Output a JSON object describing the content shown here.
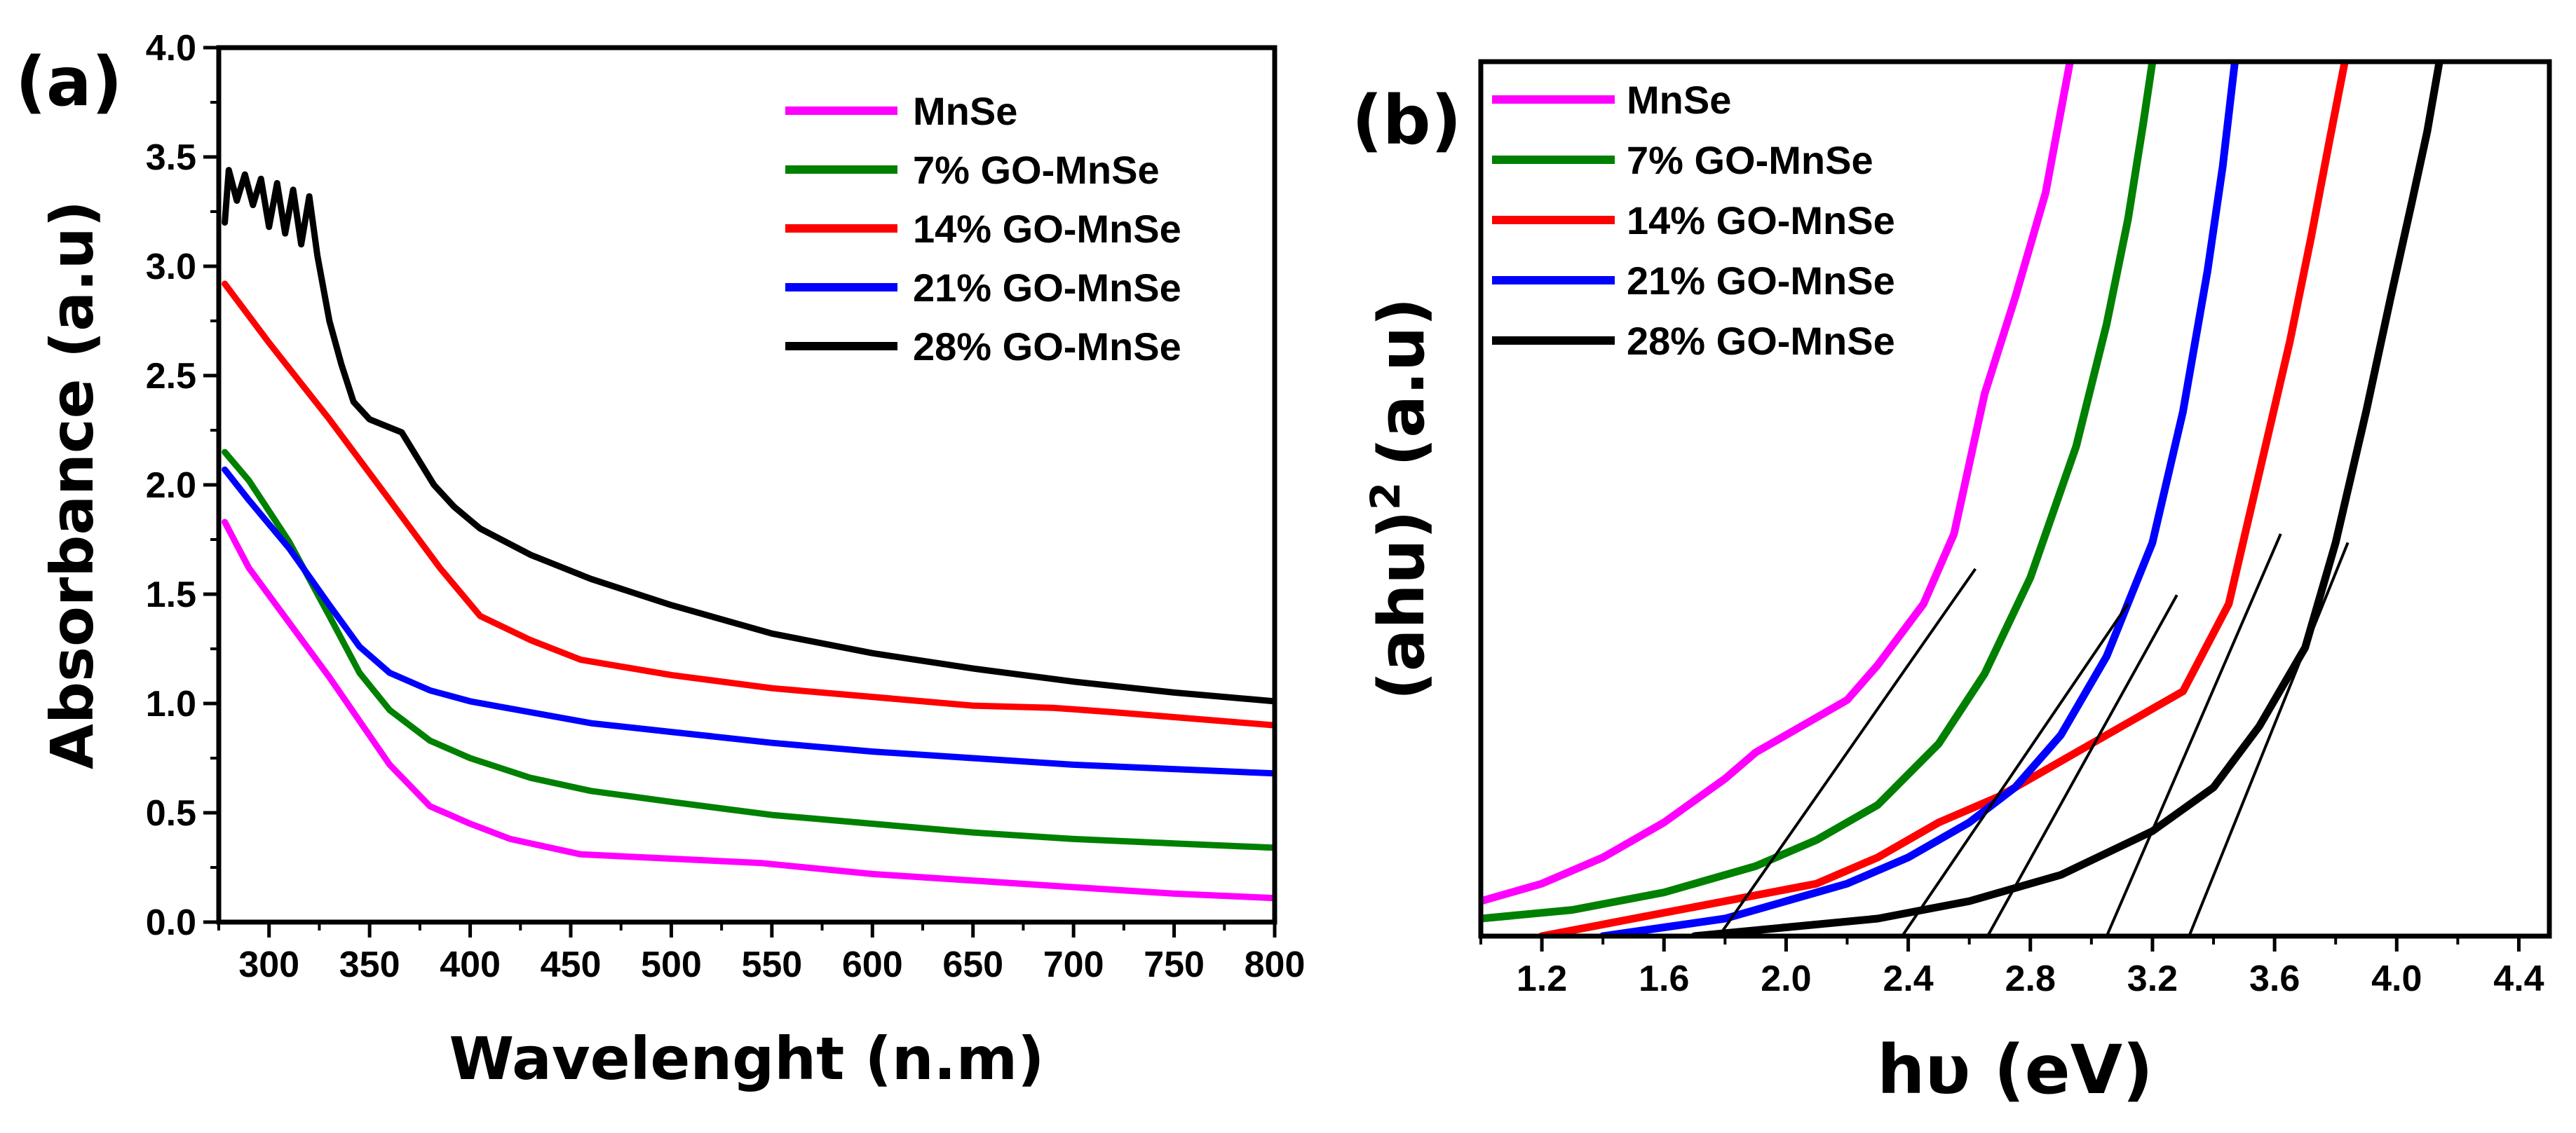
{
  "chart_data": [
    {
      "panel": "(a)",
      "type": "line",
      "xlabel": "Wavelenght (n.m)",
      "ylabel": "Absorbance (a.u)",
      "xlim": [
        275,
        800
      ],
      "ylim": [
        0,
        4.0
      ],
      "xticks": [
        300,
        350,
        400,
        450,
        500,
        550,
        600,
        650,
        700,
        750,
        800
      ],
      "yticks": [
        0.0,
        0.5,
        1.0,
        1.5,
        2.0,
        2.5,
        3.0,
        3.5,
        4.0
      ],
      "xtick_labels": [
        "300",
        "350",
        "400",
        "450",
        "500",
        "550",
        "600",
        "650",
        "700",
        "750",
        "800"
      ],
      "ytick_labels": [
        "0.0",
        "0.5",
        "1.0",
        "1.5",
        "2.0",
        "2.5",
        "3.0",
        "3.5",
        "4.0"
      ],
      "legend_position": "top-right",
      "series": [
        {
          "name": "MnSe",
          "color": "#ff00ff",
          "x": [
            278,
            290,
            310,
            330,
            345,
            360,
            380,
            400,
            420,
            455,
            500,
            545,
            600,
            650,
            700,
            750,
            800
          ],
          "y": [
            1.83,
            1.62,
            1.37,
            1.12,
            0.92,
            0.72,
            0.53,
            0.45,
            0.38,
            0.31,
            0.29,
            0.27,
            0.22,
            0.19,
            0.16,
            0.13,
            0.11
          ]
        },
        {
          "name": "7% GO-MnSe",
          "color": "#008000",
          "x": [
            278,
            290,
            310,
            330,
            345,
            360,
            380,
            400,
            430,
            460,
            500,
            550,
            600,
            650,
            700,
            750,
            800
          ],
          "y": [
            2.15,
            2.02,
            1.74,
            1.4,
            1.14,
            0.97,
            0.83,
            0.75,
            0.66,
            0.6,
            0.55,
            0.49,
            0.45,
            0.41,
            0.38,
            0.36,
            0.34
          ]
        },
        {
          "name": "14% GO-MnSe",
          "color": "#ff0000",
          "x": [
            278,
            300,
            330,
            360,
            385,
            405,
            430,
            455,
            500,
            550,
            600,
            650,
            690,
            720,
            760,
            800
          ],
          "y": [
            2.92,
            2.65,
            2.3,
            1.93,
            1.62,
            1.4,
            1.29,
            1.2,
            1.13,
            1.07,
            1.03,
            0.99,
            0.98,
            0.96,
            0.93,
            0.9
          ]
        },
        {
          "name": "21% GO-MnSe",
          "color": "#0000ff",
          "x": [
            278,
            290,
            310,
            330,
            345,
            360,
            380,
            400,
            430,
            460,
            500,
            550,
            600,
            650,
            700,
            750,
            800
          ],
          "y": [
            2.07,
            1.93,
            1.71,
            1.45,
            1.26,
            1.14,
            1.06,
            1.01,
            0.96,
            0.91,
            0.87,
            0.82,
            0.78,
            0.75,
            0.72,
            0.7,
            0.68
          ]
        },
        {
          "name": "28% GO-MnSe",
          "color": "#000000",
          "x": [
            278,
            280,
            284,
            288,
            292,
            296,
            300,
            304,
            308,
            312,
            316,
            320,
            324,
            330,
            336,
            342,
            350,
            358,
            366,
            374,
            382,
            392,
            405,
            430,
            460,
            500,
            550,
            600,
            650,
            700,
            750,
            800
          ],
          "y": [
            3.2,
            3.44,
            3.3,
            3.42,
            3.28,
            3.4,
            3.18,
            3.38,
            3.15,
            3.35,
            3.1,
            3.32,
            3.05,
            2.75,
            2.55,
            2.38,
            2.3,
            2.27,
            2.24,
            2.12,
            2.0,
            1.9,
            1.8,
            1.68,
            1.57,
            1.45,
            1.32,
            1.23,
            1.16,
            1.1,
            1.05,
            1.01
          ]
        }
      ]
    },
    {
      "panel": "(b)",
      "type": "line",
      "xlabel": "hυ (eV)",
      "ylabel_main": "(ahu)",
      "ylabel_sup": "2",
      "ylabel_unit": "(a.u)",
      "xlim": [
        1.0,
        4.5
      ],
      "ylim": [
        0,
        1
      ],
      "xticks": [
        1.2,
        1.6,
        2.0,
        2.4,
        2.8,
        3.2,
        3.6,
        4.0,
        4.4
      ],
      "xtick_labels": [
        "1.2",
        "1.6",
        "2.0",
        "2.4",
        "2.8",
        "3.2",
        "3.6",
        "4.0",
        "4.4"
      ],
      "legend_position": "top-left",
      "series": [
        {
          "name": "MnSe",
          "color": "#ff00ff",
          "x": [
            1.0,
            1.2,
            1.4,
            1.6,
            1.8,
            1.9,
            2.0,
            2.1,
            2.2,
            2.3,
            2.45,
            2.55,
            2.65,
            2.75,
            2.85,
            2.93
          ],
          "y": [
            0.04,
            0.06,
            0.09,
            0.13,
            0.18,
            0.21,
            0.23,
            0.25,
            0.27,
            0.31,
            0.38,
            0.46,
            0.62,
            0.73,
            0.85,
            1.0
          ]
        },
        {
          "name": "7% GO-MnSe",
          "color": "#008000",
          "x": [
            1.0,
            1.3,
            1.6,
            1.9,
            2.1,
            2.3,
            2.5,
            2.65,
            2.8,
            2.95,
            3.05,
            3.12,
            3.17,
            3.2
          ],
          "y": [
            0.02,
            0.03,
            0.05,
            0.08,
            0.11,
            0.15,
            0.22,
            0.3,
            0.41,
            0.56,
            0.7,
            0.82,
            0.93,
            1.0
          ]
        },
        {
          "name": "14% GO-MnSe",
          "color": "#ff0000",
          "x": [
            1.2,
            1.5,
            1.8,
            2.1,
            2.3,
            2.5,
            2.7,
            2.9,
            3.1,
            3.3,
            3.45,
            3.55,
            3.65,
            3.72,
            3.78,
            3.83
          ],
          "y": [
            0.0,
            0.02,
            0.04,
            0.06,
            0.09,
            0.13,
            0.16,
            0.2,
            0.24,
            0.28,
            0.38,
            0.53,
            0.68,
            0.8,
            0.91,
            1.0
          ]
        },
        {
          "name": "21% GO-MnSe",
          "color": "#0000ff",
          "x": [
            1.4,
            1.6,
            1.8,
            2.0,
            2.2,
            2.4,
            2.6,
            2.75,
            2.9,
            3.05,
            3.2,
            3.3,
            3.38,
            3.43,
            3.47
          ],
          "y": [
            0.0,
            0.01,
            0.02,
            0.04,
            0.06,
            0.09,
            0.13,
            0.17,
            0.23,
            0.32,
            0.45,
            0.6,
            0.76,
            0.88,
            1.0
          ]
        },
        {
          "name": "28% GO-MnSe",
          "color": "#000000",
          "x": [
            1.7,
            2.0,
            2.3,
            2.6,
            2.9,
            3.2,
            3.4,
            3.55,
            3.7,
            3.8,
            3.9,
            3.98,
            4.05,
            4.1,
            4.14
          ],
          "y": [
            0.0,
            0.01,
            0.02,
            0.04,
            0.07,
            0.12,
            0.17,
            0.24,
            0.33,
            0.45,
            0.6,
            0.73,
            0.84,
            0.92,
            1.0
          ]
        }
      ],
      "tangent_lines": [
        {
          "for": "MnSe",
          "x": [
            1.78,
            2.62
          ],
          "y": [
            0.0,
            0.42
          ]
        },
        {
          "for": "7% GO-MnSe",
          "x": [
            2.38,
            3.12
          ],
          "y": [
            0.0,
            0.38
          ]
        },
        {
          "for": "14% GO-MnSe",
          "x": [
            3.05,
            3.62
          ],
          "y": [
            0.0,
            0.46
          ]
        },
        {
          "for": "21% GO-MnSe",
          "x": [
            2.66,
            3.28
          ],
          "y": [
            0.0,
            0.39
          ]
        },
        {
          "for": "28% GO-MnSe",
          "x": [
            3.32,
            3.84
          ],
          "y": [
            0.0,
            0.45
          ]
        }
      ]
    }
  ]
}
